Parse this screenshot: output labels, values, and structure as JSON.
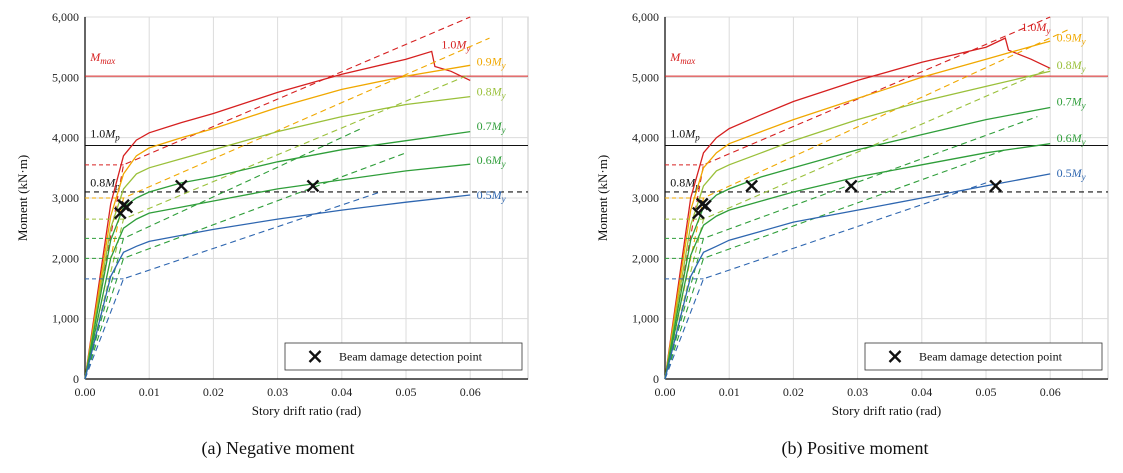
{
  "chart_data": [
    {
      "type": "line",
      "caption": "(a) Negative moment",
      "xlabel": "Story drift ratio (rad)",
      "ylabel": "Moment (kN·m)",
      "xlim": [
        0,
        0.069
      ],
      "ylim": [
        0,
        6000
      ],
      "x_ticks": [
        "0.00",
        "0.01",
        "0.02",
        "0.03",
        "0.04",
        "0.05",
        "0.06"
      ],
      "y_ticks": [
        "0",
        "1,000",
        "2,000",
        "3,000",
        "4,000",
        "5,000",
        "6,000"
      ],
      "grid": true,
      "legend": {
        "position": "bottom-right",
        "label": "Beam damage detection point",
        "marker": "×"
      },
      "ref_lines": [
        {
          "label": "M",
          "sub": "max",
          "y": 5020,
          "color": "#d62020",
          "style": "solid"
        },
        {
          "label": "1.0M",
          "sub": "p",
          "y": 3870,
          "color": "#111111",
          "style": "solid"
        },
        {
          "label": "0.8M",
          "sub": "p",
          "y": 3100,
          "color": "#111111",
          "style": "dashed"
        }
      ],
      "series": [
        {
          "name_pre": "1.0M",
          "name_sub": "y",
          "color": "#d62020",
          "x": [
            0,
            0.004,
            0.006,
            0.008,
            0.01,
            0.015,
            0.02,
            0.03,
            0.04,
            0.05,
            0.054,
            0.0545,
            0.057,
            0.06
          ],
          "y": [
            0,
            2900,
            3700,
            3960,
            4080,
            4250,
            4400,
            4750,
            5050,
            5300,
            5430,
            5180,
            5100,
            4950
          ],
          "dashed_x": [
            0,
            0.006,
            0.06
          ],
          "dashed_y": [
            0,
            3550,
            6000
          ]
        },
        {
          "name_pre": "0.9M",
          "name_sub": "y",
          "color": "#f0a800",
          "x": [
            0,
            0.004,
            0.006,
            0.008,
            0.01,
            0.015,
            0.02,
            0.03,
            0.04,
            0.05,
            0.06
          ],
          "y": [
            0,
            2700,
            3400,
            3700,
            3830,
            4000,
            4150,
            4500,
            4800,
            5020,
            5200
          ],
          "dashed_x": [
            0,
            0.006,
            0.063
          ],
          "dashed_y": [
            0,
            3000,
            5650
          ]
        },
        {
          "name_pre": "0.8M",
          "name_sub": "y",
          "color": "#9ac03a",
          "x": [
            0,
            0.004,
            0.006,
            0.008,
            0.01,
            0.015,
            0.02,
            0.03,
            0.04,
            0.05,
            0.06
          ],
          "y": [
            0,
            2500,
            3150,
            3400,
            3500,
            3650,
            3800,
            4100,
            4350,
            4550,
            4680
          ],
          "dashed_x": [
            0,
            0.006,
            0.06
          ],
          "dashed_y": [
            0,
            2650,
            5050
          ]
        },
        {
          "name_pre": "0.7M",
          "name_sub": "y",
          "color": "#2f9e3a",
          "x": [
            0,
            0.004,
            0.006,
            0.008,
            0.01,
            0.015,
            0.02,
            0.03,
            0.04,
            0.05,
            0.06
          ],
          "y": [
            0,
            2300,
            2850,
            3000,
            3100,
            3250,
            3350,
            3600,
            3800,
            3950,
            4100
          ],
          "dashed_x": [
            0,
            0.006,
            0.043
          ],
          "dashed_y": [
            0,
            2330,
            4150
          ]
        },
        {
          "name_pre": "0.6M",
          "name_sub": "y",
          "color": "#2f9e3a",
          "x": [
            0,
            0.004,
            0.006,
            0.008,
            0.01,
            0.015,
            0.02,
            0.03,
            0.04,
            0.05,
            0.06
          ],
          "y": [
            0,
            2000,
            2500,
            2650,
            2750,
            2850,
            2950,
            3150,
            3300,
            3450,
            3560
          ],
          "dashed_x": [
            0,
            0.006,
            0.05
          ],
          "dashed_y": [
            0,
            2000,
            3750
          ]
        },
        {
          "name_pre": "0.5M",
          "name_sub": "y",
          "color": "#2e66b0",
          "x": [
            0,
            0.004,
            0.006,
            0.008,
            0.01,
            0.015,
            0.02,
            0.03,
            0.04,
            0.05,
            0.06
          ],
          "y": [
            0,
            1700,
            2100,
            2200,
            2280,
            2380,
            2480,
            2650,
            2800,
            2930,
            3050
          ],
          "dashed_x": [
            0,
            0.006,
            0.046
          ],
          "dashed_y": [
            0,
            1660,
            3100
          ]
        }
      ],
      "markers": {
        "x": [
          0.0055,
          0.006,
          0.0065,
          0.015,
          0.0355
        ],
        "y": [
          2750,
          2880,
          2850,
          3200,
          3200
        ]
      }
    },
    {
      "type": "line",
      "caption": "(b) Positive moment",
      "xlabel": "Story drift ratio (rad)",
      "ylabel": "Moment (kN·m)",
      "xlim": [
        0,
        0.069
      ],
      "ylim": [
        0,
        6000
      ],
      "x_ticks": [
        "0.00",
        "0.01",
        "0.02",
        "0.03",
        "0.04",
        "0.05",
        "0.06"
      ],
      "y_ticks": [
        "0",
        "1,000",
        "2,000",
        "3,000",
        "4,000",
        "5,000",
        "6,000"
      ],
      "grid": true,
      "legend": {
        "position": "bottom-right",
        "label": "Beam damage detection point",
        "marker": "×"
      },
      "ref_lines": [
        {
          "label": "M",
          "sub": "max",
          "y": 5020,
          "color": "#d62020",
          "style": "solid"
        },
        {
          "label": "1.0M",
          "sub": "p",
          "y": 3870,
          "color": "#111111",
          "style": "solid"
        },
        {
          "label": "0.8M",
          "sub": "p",
          "y": 3100,
          "color": "#111111",
          "style": "dashed"
        }
      ],
      "series": [
        {
          "name_pre": "1.0M",
          "name_sub": "y",
          "color": "#d62020",
          "x": [
            0,
            0.004,
            0.006,
            0.008,
            0.01,
            0.015,
            0.02,
            0.03,
            0.04,
            0.05,
            0.053,
            0.0535,
            0.057,
            0.06
          ],
          "y": [
            0,
            3000,
            3750,
            4000,
            4150,
            4380,
            4600,
            4950,
            5250,
            5500,
            5650,
            5450,
            5300,
            5150
          ],
          "dashed_x": [
            0,
            0.006,
            0.06
          ],
          "dashed_y": [
            0,
            3550,
            6000
          ]
        },
        {
          "name_pre": "0.9M",
          "name_sub": "y",
          "color": "#f0a800",
          "x": [
            0,
            0.004,
            0.006,
            0.008,
            0.01,
            0.015,
            0.02,
            0.03,
            0.04,
            0.05,
            0.06
          ],
          "y": [
            0,
            2800,
            3500,
            3750,
            3900,
            4100,
            4300,
            4650,
            5000,
            5300,
            5600
          ],
          "dashed_x": [
            0,
            0.006,
            0.063
          ],
          "dashed_y": [
            0,
            3000,
            5800
          ]
        },
        {
          "name_pre": "0.8M",
          "name_sub": "y",
          "color": "#9ac03a",
          "x": [
            0,
            0.004,
            0.006,
            0.008,
            0.01,
            0.015,
            0.02,
            0.03,
            0.04,
            0.05,
            0.06
          ],
          "y": [
            0,
            2550,
            3200,
            3450,
            3550,
            3750,
            3950,
            4300,
            4600,
            4850,
            5100
          ],
          "dashed_x": [
            0,
            0.006,
            0.06
          ],
          "dashed_y": [
            0,
            2650,
            5150
          ]
        },
        {
          "name_pre": "0.7M",
          "name_sub": "y",
          "color": "#2f9e3a",
          "x": [
            0,
            0.004,
            0.006,
            0.008,
            0.01,
            0.015,
            0.02,
            0.03,
            0.04,
            0.05,
            0.06
          ],
          "y": [
            0,
            2300,
            2850,
            3050,
            3150,
            3350,
            3500,
            3800,
            4050,
            4300,
            4500
          ],
          "dashed_x": [
            0,
            0.006,
            0.058
          ],
          "dashed_y": [
            0,
            2330,
            4350
          ]
        },
        {
          "name_pre": "0.6M",
          "name_sub": "y",
          "color": "#2f9e3a",
          "x": [
            0,
            0.004,
            0.006,
            0.008,
            0.01,
            0.015,
            0.02,
            0.03,
            0.04,
            0.05,
            0.06
          ],
          "y": [
            0,
            2050,
            2550,
            2700,
            2800,
            2950,
            3100,
            3350,
            3550,
            3750,
            3900
          ],
          "dashed_x": [
            0,
            0.006,
            0.053
          ],
          "dashed_y": [
            0,
            2000,
            3800
          ]
        },
        {
          "name_pre": "0.5M",
          "name_sub": "y",
          "color": "#2e66b0",
          "x": [
            0,
            0.004,
            0.006,
            0.008,
            0.01,
            0.015,
            0.02,
            0.03,
            0.04,
            0.05,
            0.06
          ],
          "y": [
            0,
            1700,
            2100,
            2200,
            2300,
            2450,
            2600,
            2800,
            3000,
            3200,
            3400
          ],
          "dashed_x": [
            0,
            0.006,
            0.05
          ],
          "dashed_y": [
            0,
            1660,
            3250
          ]
        }
      ],
      "markers": {
        "x": [
          0.0052,
          0.0058,
          0.0063,
          0.0135,
          0.029,
          0.0515
        ],
        "y": [
          2750,
          2900,
          2870,
          3200,
          3200,
          3200
        ]
      }
    }
  ]
}
